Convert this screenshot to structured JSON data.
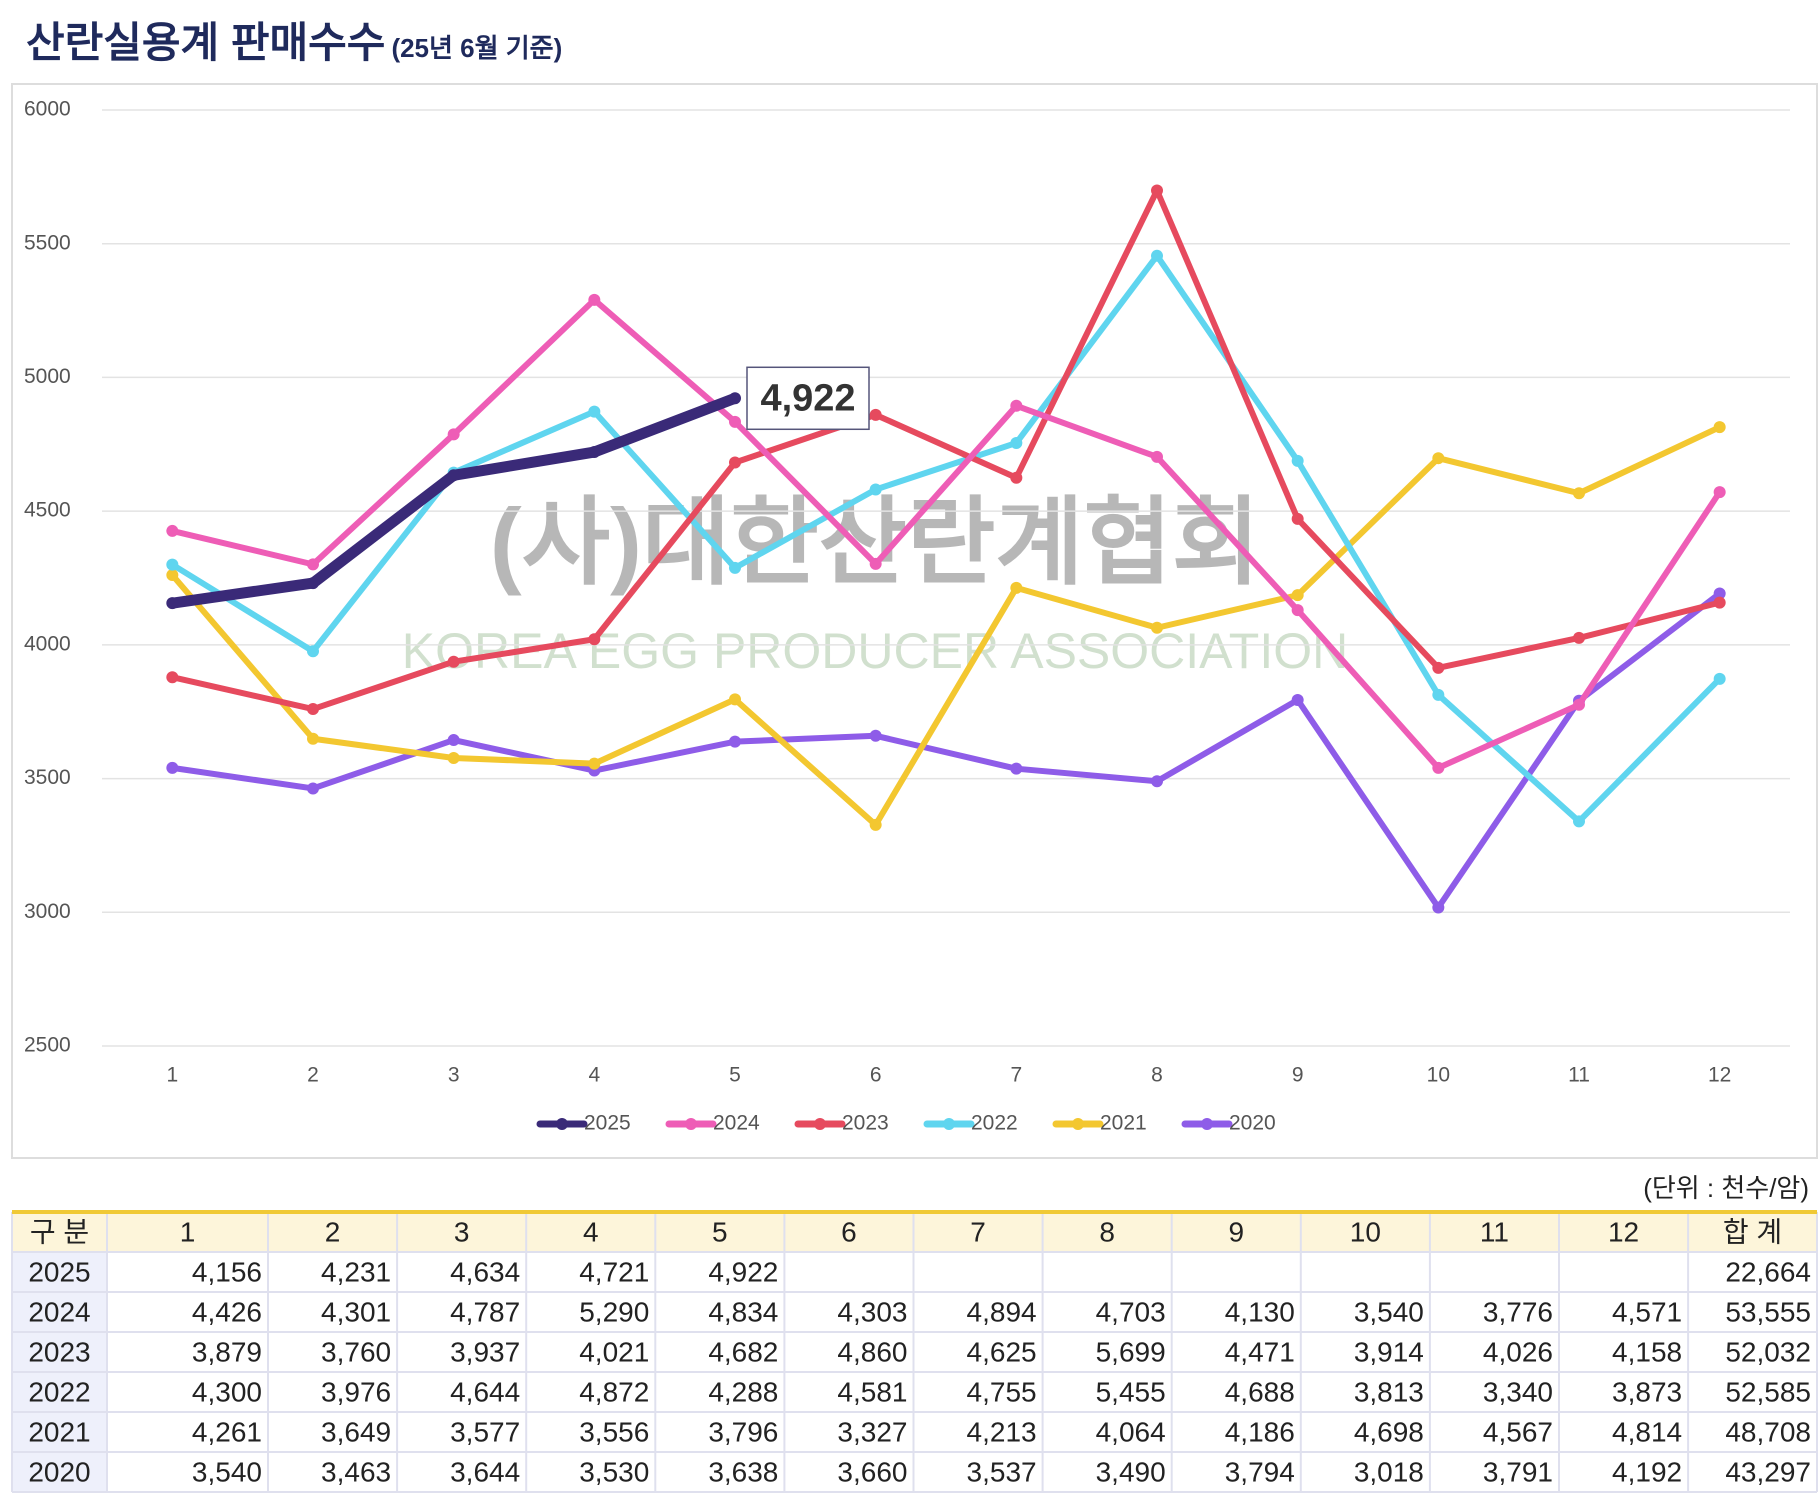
{
  "title": "산란실용계 판매수수",
  "subtitle": "(25년 6월 기준)",
  "watermark": {
    "title": "(사)대한산란계협회",
    "subtitle": "KOREA EGG PRODUCER ASSOCIATION"
  },
  "chart_data": {
    "type": "line",
    "categories": [
      "1",
      "2",
      "3",
      "4",
      "5",
      "6",
      "7",
      "8",
      "9",
      "10",
      "11",
      "12"
    ],
    "series": [
      {
        "name": "2025",
        "color": "#3a2a78",
        "values": [
          4156,
          4231,
          4634,
          4721,
          4922,
          null,
          null,
          null,
          null,
          null,
          null,
          null
        ],
        "value_labels": [
          null,
          null,
          null,
          null,
          "4,922",
          null,
          null,
          null,
          null,
          null,
          null,
          null
        ]
      },
      {
        "name": "2024",
        "color": "#ee5db6",
        "values": [
          4426,
          4301,
          4787,
          5290,
          4834,
          4303,
          4894,
          4703,
          4130,
          3540,
          3776,
          4571
        ]
      },
      {
        "name": "2023",
        "color": "#e64a5e",
        "values": [
          3879,
          3760,
          3937,
          4021,
          4682,
          4860,
          4625,
          5699,
          4471,
          3914,
          4026,
          4158
        ]
      },
      {
        "name": "2022",
        "color": "#5fd5ef",
        "values": [
          4300,
          3976,
          4644,
          4872,
          4288,
          4581,
          4755,
          5455,
          4688,
          3813,
          3340,
          3873
        ]
      },
      {
        "name": "2021",
        "color": "#f3c730",
        "values": [
          4261,
          3649,
          3577,
          3556,
          3796,
          3327,
          4213,
          4064,
          4186,
          4698,
          4567,
          4814
        ]
      },
      {
        "name": "2020",
        "color": "#8e5ce8",
        "values": [
          3540,
          3463,
          3644,
          3530,
          3638,
          3660,
          3537,
          3490,
          3794,
          3018,
          3791,
          4192
        ]
      }
    ],
    "ylim": [
      2500,
      6000
    ],
    "yticks": [
      2500,
      3000,
      3500,
      4000,
      4500,
      5000,
      5500,
      6000
    ],
    "grid": true,
    "legend": "bottom"
  },
  "table": {
    "unit": "(단위 : 천수/암)",
    "header": [
      "구 분",
      "1",
      "2",
      "3",
      "4",
      "5",
      "6",
      "7",
      "8",
      "9",
      "10",
      "11",
      "12",
      "합 계"
    ],
    "rows": [
      [
        "2025",
        "4,156",
        "4,231",
        "4,634",
        "4,721",
        "4,922",
        null,
        null,
        null,
        null,
        null,
        null,
        null,
        "22,664"
      ],
      [
        "2024",
        "4,426",
        "4,301",
        "4,787",
        "5,290",
        "4,834",
        "4,303",
        "4,894",
        "4,703",
        "4,130",
        "3,540",
        "3,776",
        "4,571",
        "53,555"
      ],
      [
        "2023",
        "3,879",
        "3,760",
        "3,937",
        "4,021",
        "4,682",
        "4,860",
        "4,625",
        "5,699",
        "4,471",
        "3,914",
        "4,026",
        "4,158",
        "52,032"
      ],
      [
        "2022",
        "4,300",
        "3,976",
        "4,644",
        "4,872",
        "4,288",
        "4,581",
        "4,755",
        "5,455",
        "4,688",
        "3,813",
        "3,340",
        "3,873",
        "52,585"
      ],
      [
        "2021",
        "4,261",
        "3,649",
        "3,577",
        "3,556",
        "3,796",
        "3,327",
        "4,213",
        "4,064",
        "4,186",
        "4,698",
        "4,567",
        "4,814",
        "48,708"
      ],
      [
        "2020",
        "3,540",
        "3,463",
        "3,644",
        "3,530",
        "3,638",
        "3,660",
        "3,537",
        "3,490",
        "3,794",
        "3,018",
        "3,791",
        "4,192",
        "43,297"
      ]
    ]
  }
}
